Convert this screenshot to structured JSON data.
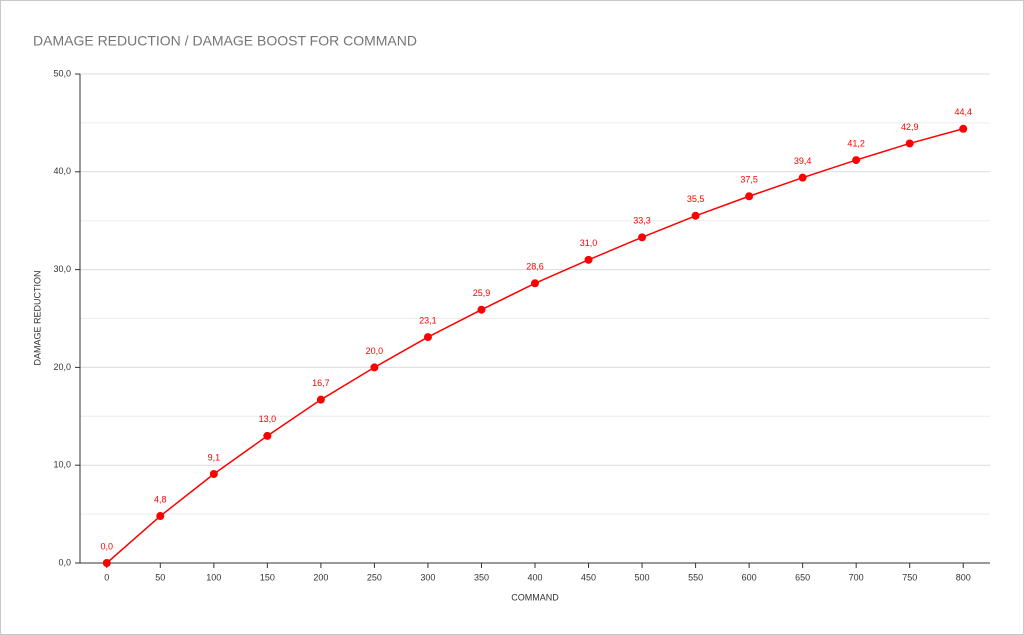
{
  "chart_data": {
    "type": "line",
    "title": "DAMAGE REDUCTION / DAMAGE BOOST FOR COMMAND",
    "x_label": "COMMAND",
    "y_label": "DAMAGE REDUCTION",
    "categories": [
      "0",
      "50",
      "100",
      "150",
      "200",
      "250",
      "300",
      "350",
      "400",
      "450",
      "500",
      "550",
      "600",
      "650",
      "700",
      "750",
      "800"
    ],
    "values": [
      0.0,
      4.8,
      9.1,
      13.0,
      16.7,
      20.0,
      23.1,
      25.9,
      28.6,
      31.0,
      33.3,
      35.5,
      37.5,
      39.4,
      41.2,
      42.9,
      44.4
    ],
    "value_labels": [
      "0,0",
      "4,8",
      "9,1",
      "13,0",
      "16,7",
      "20,0",
      "23,1",
      "25,9",
      "28,6",
      "31,0",
      "33,3",
      "35,5",
      "37,5",
      "39,4",
      "41,2",
      "42,9",
      "44,4"
    ],
    "color": "#ff0000",
    "ylim": [
      0,
      50
    ],
    "yticks": [
      {
        "value": 0,
        "label": "0,0"
      },
      {
        "value": 10,
        "label": "10,0"
      },
      {
        "value": 20,
        "label": "20,0"
      },
      {
        "value": 30,
        "label": "30,0"
      },
      {
        "value": 40,
        "label": "40,0"
      },
      {
        "value": 50,
        "label": "50,0"
      }
    ],
    "minor_yticks": [
      5,
      15,
      25,
      35,
      45
    ],
    "grid": true
  }
}
